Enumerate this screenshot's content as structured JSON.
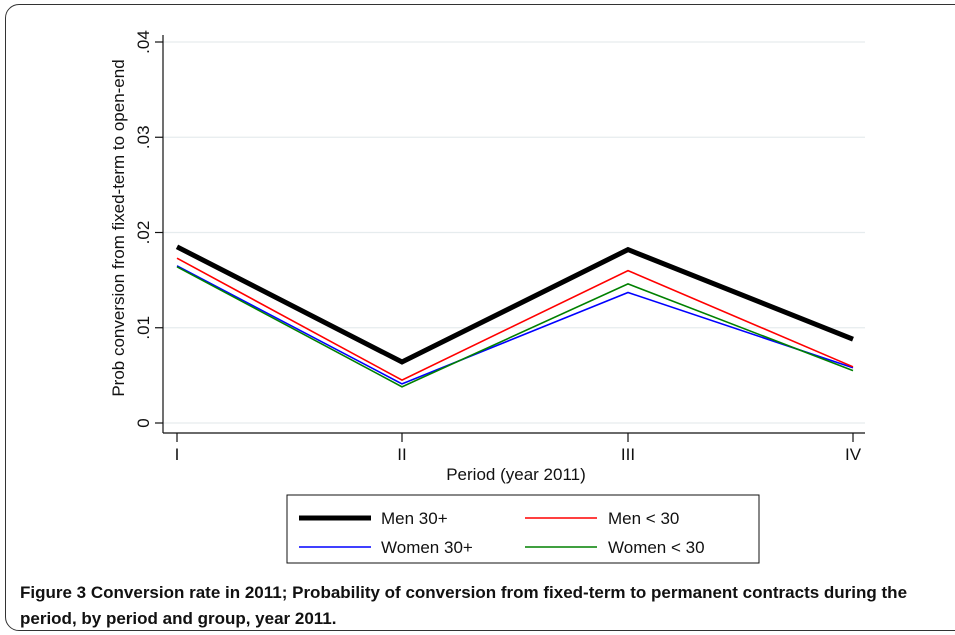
{
  "caption": {
    "label": "Figure 3",
    "text": "Conversion rate in 2011; Probability of conversion from fixed-term to permanent contracts during the period, by period and group, year 2011."
  },
  "chart_data": {
    "type": "line",
    "categories": [
      "I",
      "II",
      "III",
      "IV"
    ],
    "xlabel": "Period (year 2011)",
    "ylabel": "Prob conversion from fixed-term to open-end",
    "ylim": [
      0,
      0.04
    ],
    "yticks": [
      0,
      0.01,
      0.02,
      0.03,
      0.04
    ],
    "ytick_labels": [
      "0",
      ".01",
      ".02",
      ".03",
      ".04"
    ],
    "grid": true,
    "legend_position": "bottom",
    "series": [
      {
        "name": "Men 30+",
        "values": [
          0.0185,
          0.0064,
          0.0182,
          0.0088
        ],
        "color": "#000000",
        "width": 5
      },
      {
        "name": "Men < 30",
        "values": [
          0.0173,
          0.0045,
          0.016,
          0.0059
        ],
        "color": "#ff0000",
        "width": 1.6
      },
      {
        "name": "Women 30+",
        "values": [
          0.0165,
          0.0041,
          0.0137,
          0.0058
        ],
        "color": "#0000ff",
        "width": 1.6
      },
      {
        "name": "Women < 30",
        "values": [
          0.0164,
          0.0038,
          0.0146,
          0.0055
        ],
        "color": "#008000",
        "width": 1.6
      }
    ]
  }
}
